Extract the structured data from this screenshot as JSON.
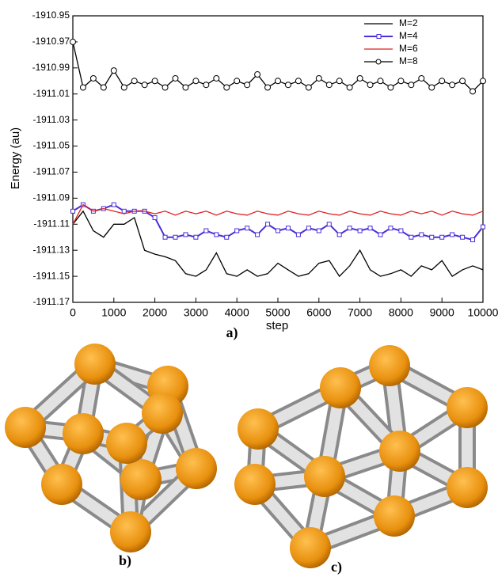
{
  "chart_data": {
    "type": "line",
    "y_label": "Energy (au)",
    "x_label": "step",
    "panel_label": "a)",
    "xlim": [
      0,
      10000
    ],
    "xticks": [
      0,
      1000,
      2000,
      3000,
      4000,
      5000,
      6000,
      7000,
      8000,
      9000,
      10000
    ],
    "ylim": [
      -1911.17,
      -1910.95
    ],
    "yticks": [
      -1910.95,
      -1910.97,
      -1910.99,
      -1911.01,
      -1911.03,
      -1911.05,
      -1911.07,
      -1911.09,
      -1911.11,
      -1911.13,
      -1911.15,
      -1911.17
    ],
    "legend": "top-right",
    "x": [
      0,
      250,
      500,
      750,
      1000,
      1250,
      1500,
      1750,
      2000,
      2250,
      2500,
      2750,
      3000,
      3250,
      3500,
      3750,
      4000,
      4250,
      4500,
      4750,
      5000,
      5250,
      5500,
      5750,
      6000,
      6250,
      6500,
      6750,
      7000,
      7250,
      7500,
      7750,
      8000,
      8250,
      8500,
      8750,
      9000,
      9250,
      9500,
      9750,
      10000
    ],
    "series": [
      {
        "name": "M=2",
        "color": "#000000",
        "marker": "none",
        "values": [
          -1911.11,
          -1911.1,
          -1911.115,
          -1911.12,
          -1911.11,
          -1911.11,
          -1911.105,
          -1911.13,
          -1911.133,
          -1911.135,
          -1911.138,
          -1911.148,
          -1911.15,
          -1911.145,
          -1911.132,
          -1911.148,
          -1911.15,
          -1911.145,
          -1911.15,
          -1911.148,
          -1911.14,
          -1911.145,
          -1911.15,
          -1911.148,
          -1911.14,
          -1911.138,
          -1911.15,
          -1911.142,
          -1911.13,
          -1911.145,
          -1911.15,
          -1911.148,
          -1911.145,
          -1911.15,
          -1911.142,
          -1911.145,
          -1911.138,
          -1911.15,
          -1911.145,
          -1911.142,
          -1911.145
        ]
      },
      {
        "name": "M=4",
        "color": "#4b2fd8",
        "marker": "square",
        "values": [
          -1911.1,
          -1911.095,
          -1911.1,
          -1911.098,
          -1911.095,
          -1911.1,
          -1911.1,
          -1911.1,
          -1911.105,
          -1911.12,
          -1911.12,
          -1911.118,
          -1911.12,
          -1911.115,
          -1911.118,
          -1911.12,
          -1911.115,
          -1911.113,
          -1911.118,
          -1911.11,
          -1911.115,
          -1911.113,
          -1911.118,
          -1911.113,
          -1911.115,
          -1911.11,
          -1911.118,
          -1911.113,
          -1911.115,
          -1911.113,
          -1911.118,
          -1911.113,
          -1911.115,
          -1911.12,
          -1911.118,
          -1911.12,
          -1911.12,
          -1911.118,
          -1911.12,
          -1911.122,
          -1911.112
        ]
      },
      {
        "name": "M=6",
        "color": "#e02020",
        "marker": "none",
        "values": [
          -1911.11,
          -1911.095,
          -1911.1,
          -1911.098,
          -1911.1,
          -1911.102,
          -1911.1,
          -1911.1,
          -1911.102,
          -1911.1,
          -1911.103,
          -1911.1,
          -1911.102,
          -1911.1,
          -1911.103,
          -1911.1,
          -1911.102,
          -1911.103,
          -1911.1,
          -1911.102,
          -1911.103,
          -1911.1,
          -1911.102,
          -1911.103,
          -1911.1,
          -1911.102,
          -1911.103,
          -1911.1,
          -1911.102,
          -1911.103,
          -1911.1,
          -1911.102,
          -1911.103,
          -1911.1,
          -1911.102,
          -1911.1,
          -1911.103,
          -1911.1,
          -1911.102,
          -1911.103,
          -1911.1
        ]
      },
      {
        "name": "M=8",
        "color": "#000000",
        "marker": "circle",
        "values": [
          -1910.97,
          -1911.005,
          -1910.998,
          -1911.005,
          -1910.992,
          -1911.005,
          -1911.0,
          -1911.003,
          -1911.0,
          -1911.005,
          -1910.998,
          -1911.005,
          -1911.0,
          -1911.003,
          -1910.998,
          -1911.005,
          -1911.0,
          -1911.003,
          -1910.995,
          -1911.005,
          -1911.0,
          -1911.003,
          -1911.0,
          -1911.005,
          -1910.998,
          -1911.003,
          -1911.0,
          -1911.005,
          -1910.998,
          -1911.003,
          -1911.0,
          -1911.005,
          -1911.0,
          -1911.003,
          -1910.998,
          -1911.005,
          -1911.0,
          -1911.003,
          -1911.0,
          -1911.008,
          -1911.0
        ]
      }
    ]
  },
  "figures": [
    {
      "label": "b)"
    },
    {
      "label": "c)"
    }
  ]
}
